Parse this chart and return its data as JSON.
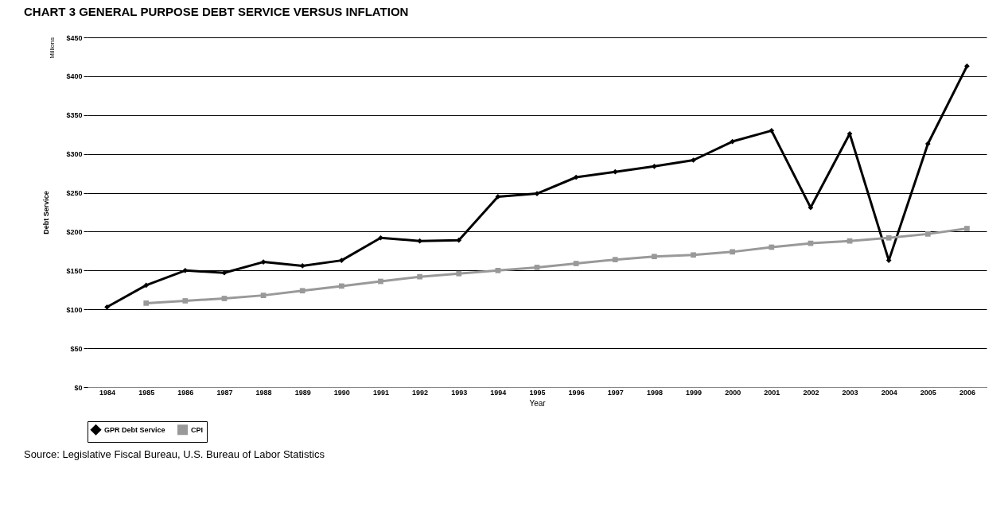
{
  "chart_data": {
    "type": "line",
    "title": "CHART 3   GENERAL PURPOSE DEBT SERVICE VERSUS INFLATION",
    "xlabel": "Year",
    "ylabel": "Debt Service",
    "categories": [
      "1984",
      "1985",
      "1986",
      "1987",
      "1988",
      "1989",
      "1990",
      "1991",
      "1992",
      "1993",
      "1994",
      "1995",
      "1996",
      "1997",
      "1998",
      "1999",
      "2000",
      "2001",
      "2002",
      "2003",
      "2004",
      "2005",
      "2006"
    ],
    "series": [
      {
        "name": "GPR Debt Service",
        "color": "#000000",
        "marker": "diamond",
        "values": [
          103,
          131,
          150,
          147,
          161,
          156,
          163,
          192,
          188,
          189,
          245,
          249,
          270,
          277,
          284,
          292,
          316,
          330,
          231,
          326,
          163,
          313,
          413
        ]
      },
      {
        "name": "CPI",
        "color": "#999999",
        "marker": "square",
        "values": [
          null,
          108,
          111,
          114,
          118,
          124,
          130,
          136,
          142,
          146,
          150,
          154,
          159,
          164,
          168,
          170,
          174,
          180,
          185,
          188,
          192,
          197,
          204
        ]
      }
    ],
    "ylim": [
      0,
      450
    ],
    "yticks": [
      {
        "value": 0,
        "label": "$0"
      },
      {
        "value": 50,
        "label": "$50"
      },
      {
        "value": 100,
        "label": "$100"
      },
      {
        "value": 150,
        "label": "$150"
      },
      {
        "value": 200,
        "label": "$200"
      },
      {
        "value": 250,
        "label": "$250"
      },
      {
        "value": 300,
        "label": "$300"
      },
      {
        "value": 350,
        "label": "$350"
      },
      {
        "value": 400,
        "label": "$400"
      },
      {
        "value": 450,
        "label": "$450"
      }
    ],
    "grid": "y",
    "legend": "bottom",
    "line_style": "solid",
    "annotations": [
      "Millions",
      "Source: Legislative Fiscal Bureau, U.S. Bureau of Labor Statistics"
    ]
  }
}
